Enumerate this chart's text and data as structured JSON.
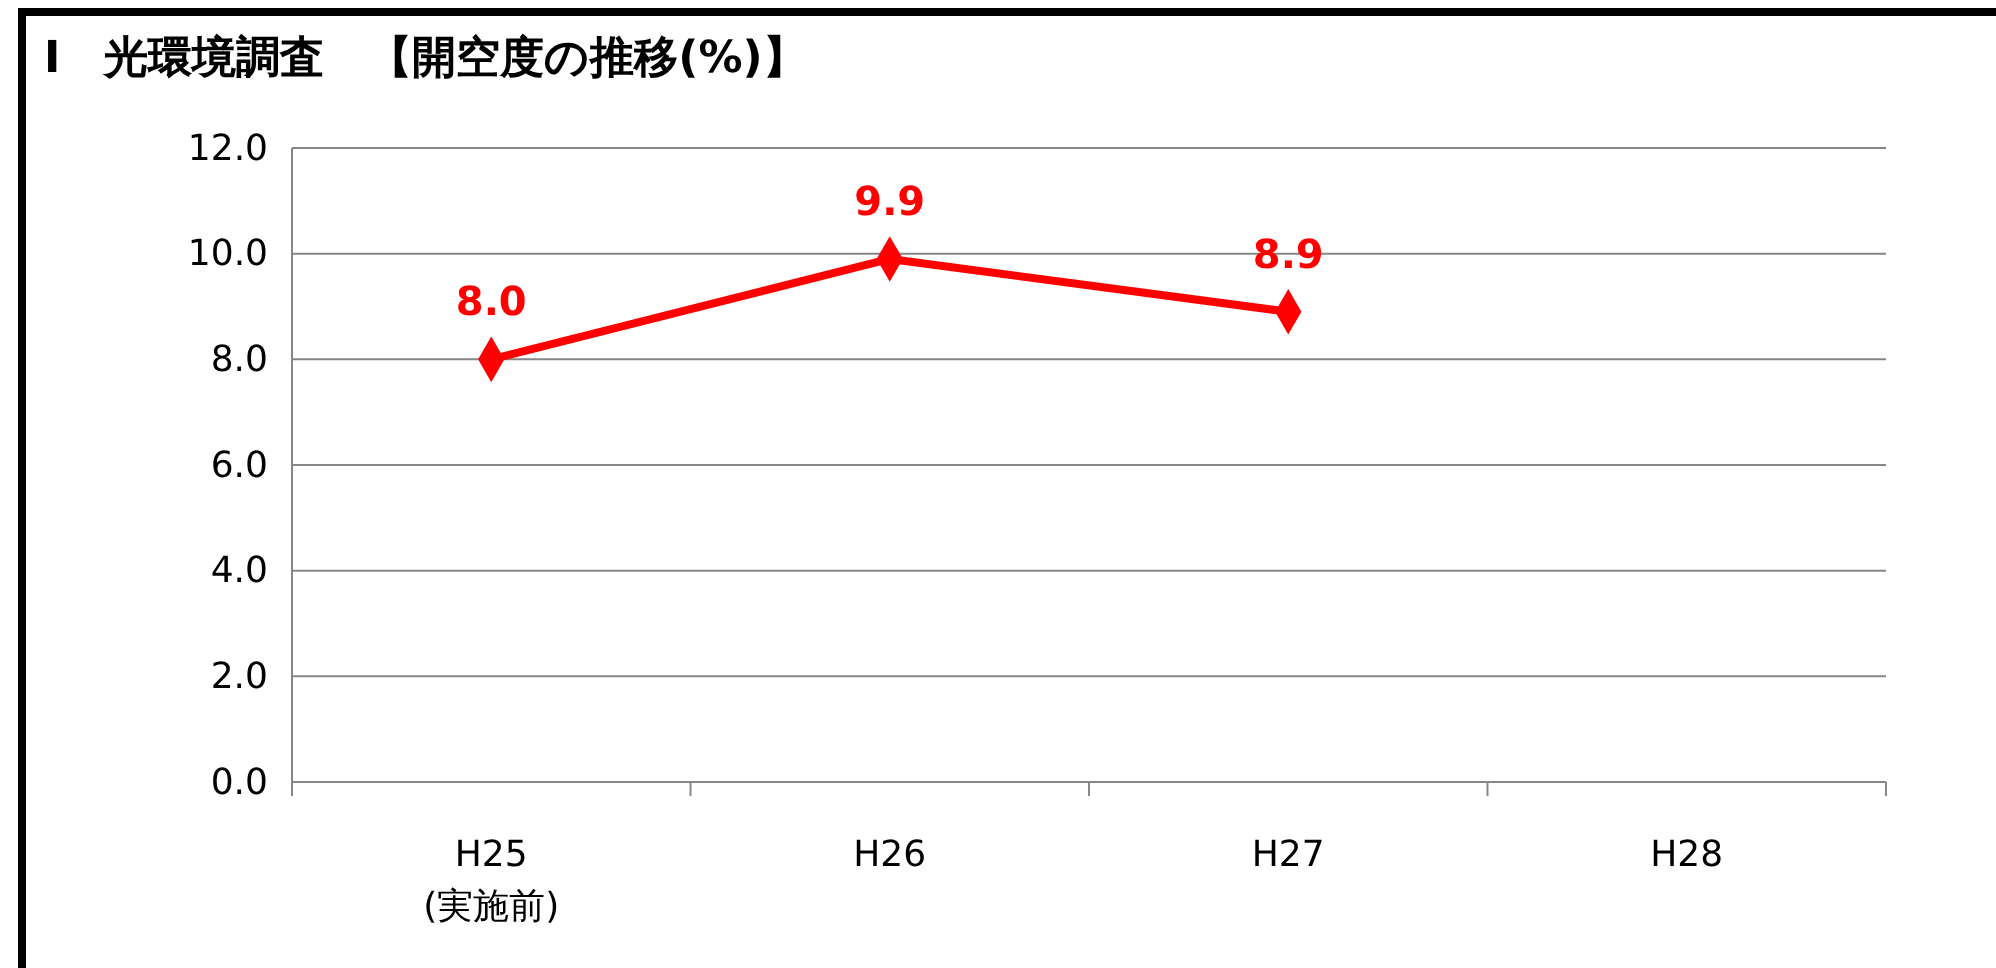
{
  "chart_data": {
    "type": "line",
    "title": "Ⅰ　光環境調査　【開空度の推移(%)】",
    "categories": [
      "H25\n(実施前)",
      "H26",
      "H27",
      "H28"
    ],
    "series": [
      {
        "color": "#ff0000",
        "values": [
          8.0,
          9.9,
          8.9,
          null
        ],
        "value_labels": [
          "8.0",
          "9.9",
          "8.9",
          null
        ]
      }
    ],
    "ylim": [
      0,
      12
    ],
    "yticks": [
      {
        "value": 0,
        "label": "0.0"
      },
      {
        "value": 2,
        "label": "2.0"
      },
      {
        "value": 4,
        "label": "4.0"
      },
      {
        "value": 6,
        "label": "6.0"
      },
      {
        "value": 8,
        "label": "8.0"
      },
      {
        "value": 10,
        "label": "10.0"
      },
      {
        "value": 12,
        "label": "12.0"
      }
    ],
    "grid": "y",
    "marker": "diamond",
    "line_style": "solid"
  }
}
